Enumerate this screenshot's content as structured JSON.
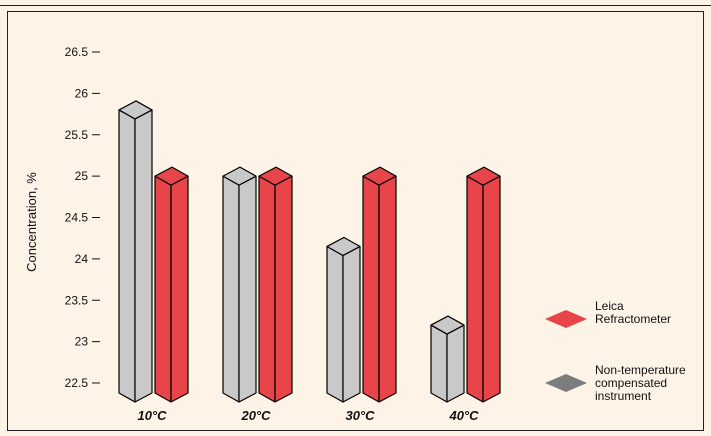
{
  "chart_data": {
    "type": "bar",
    "ylabel": "Concentration, %",
    "categories": [
      "10°C",
      "20°C",
      "30°C",
      "40°C"
    ],
    "yticks": [
      "22.5",
      "23",
      "23.5",
      "24",
      "24.5",
      "25",
      "25.5",
      "26",
      "26.5"
    ],
    "ylim": [
      22.5,
      26.5
    ],
    "series": [
      {
        "name": "Non-temperature compensated instrument",
        "values": [
          25.8,
          25.0,
          24.15,
          23.2
        ],
        "color": "#c9c9c9",
        "legend_color": "#7d7d7d"
      },
      {
        "name": "Leica Refractometer",
        "values": [
          25.0,
          25.0,
          25.0,
          25.0
        ],
        "color": "#e8454a",
        "legend_color": "#e8454a"
      }
    ],
    "legend": [
      {
        "lines": [
          "Leica",
          "Refractometer"
        ],
        "series": 1
      },
      {
        "lines": [
          "Non-temperature",
          "compensated",
          "instrument"
        ],
        "series": 0
      }
    ],
    "legend_position": "right",
    "grid": false
  }
}
